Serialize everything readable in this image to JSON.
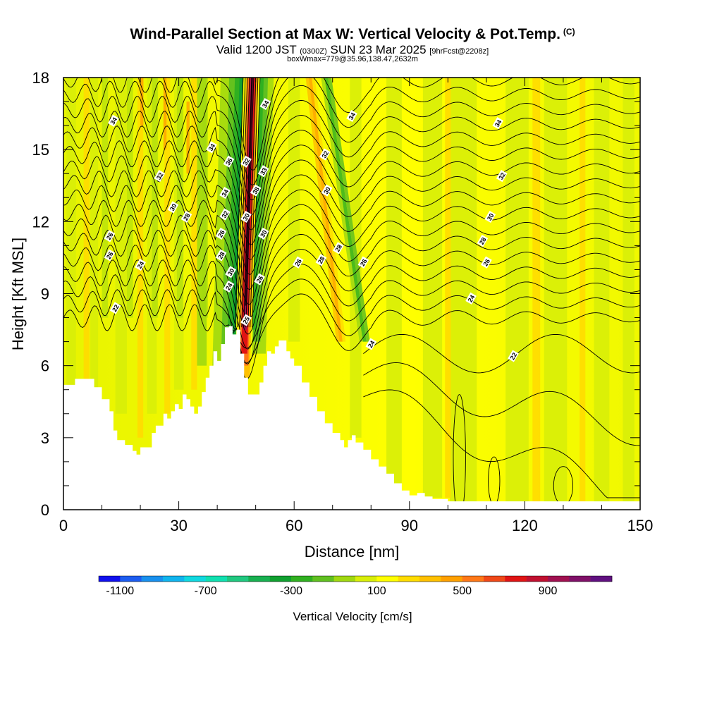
{
  "title": {
    "main": "Wind-Parallel Section at Max W: Vertical Velocity & Pot.Temp.",
    "mark": "(C)",
    "valid_prefix": "Valid 1200 JST",
    "valid_utc": "(0300Z)",
    "valid_date": "SUN 23 Mar 2025",
    "forecast": "[9hrFcst@2208z]",
    "box": "boxWmax=779@35.96,138.47,2632m"
  },
  "chart_data": {
    "type": "heatmap",
    "title": "Wind-Parallel Section at Max W: Vertical Velocity & Pot.Temp.",
    "xlabel": "Distance [nm]",
    "ylabel": "Height [Kft MSL]",
    "xlim": [
      0,
      150
    ],
    "ylim": [
      0,
      18
    ],
    "xticks": [
      0,
      30,
      60,
      90,
      120,
      150
    ],
    "yticks": [
      0,
      3,
      6,
      9,
      12,
      15,
      18
    ],
    "colorbar": {
      "title": "Vertical Velocity [cm/s]",
      "ticks": [
        -1100,
        -700,
        -300,
        100,
        500,
        900
      ],
      "colors": [
        "#1010ee",
        "#1c5cf0",
        "#1890ee",
        "#10b4ee",
        "#10d8e0",
        "#10e0b0",
        "#20c880",
        "#18b050",
        "#10a030",
        "#30b020",
        "#60c020",
        "#a0d810",
        "#d8ee08",
        "#ffff00",
        "#ffdc00",
        "#ffc000",
        "#ffa000",
        "#ff7818",
        "#f04818",
        "#e01414",
        "#c01030",
        "#a01050",
        "#801068",
        "#601080"
      ]
    },
    "terrain": [
      [
        0,
        5.2
      ],
      [
        3,
        5.45
      ],
      [
        7,
        5.45
      ],
      [
        8,
        5.1
      ],
      [
        10,
        4.6
      ],
      [
        12,
        4.1
      ],
      [
        13,
        3.3
      ],
      [
        14,
        2.9
      ],
      [
        16,
        2.7
      ],
      [
        18,
        2.45
      ],
      [
        19,
        2.3
      ],
      [
        20,
        2.6
      ],
      [
        22,
        2.6
      ],
      [
        23,
        3.2
      ],
      [
        24,
        3.5
      ],
      [
        26,
        4.0
      ],
      [
        27,
        3.8
      ],
      [
        28,
        4.1
      ],
      [
        29,
        4.4
      ],
      [
        30,
        4.2
      ],
      [
        31,
        4.8
      ],
      [
        32,
        4.6
      ],
      [
        33,
        4.3
      ],
      [
        34,
        4.0
      ],
      [
        35,
        4.3
      ],
      [
        36,
        4.9
      ],
      [
        37,
        5.5
      ],
      [
        38,
        6.0
      ],
      [
        39,
        6.6
      ],
      [
        40,
        6.2
      ],
      [
        41,
        6.9
      ],
      [
        42,
        7.6
      ],
      [
        43,
        7.65
      ],
      [
        44,
        7.3
      ],
      [
        45,
        7.5
      ],
      [
        46,
        6.5
      ],
      [
        47,
        5.5
      ],
      [
        48,
        4.8
      ],
      [
        49,
        4.8
      ],
      [
        50,
        4.8
      ],
      [
        51,
        5.3
      ],
      [
        52,
        6.0
      ],
      [
        53,
        6.6
      ],
      [
        54,
        6.5
      ],
      [
        55,
        6.8
      ],
      [
        56,
        7.05
      ],
      [
        57,
        7.05
      ],
      [
        58,
        6.6
      ],
      [
        59,
        6.3
      ],
      [
        60,
        6.0
      ],
      [
        62,
        5.3
      ],
      [
        64,
        4.7
      ],
      [
        66,
        4.1
      ],
      [
        68,
        3.6
      ],
      [
        70,
        3.2
      ],
      [
        72,
        2.9
      ],
      [
        73,
        2.6
      ],
      [
        74,
        2.9
      ],
      [
        75,
        3.1
      ],
      [
        76,
        2.8
      ],
      [
        78,
        2.5
      ],
      [
        80,
        2.1
      ],
      [
        82,
        1.8
      ],
      [
        84,
        1.5
      ],
      [
        86,
        1.1
      ],
      [
        88,
        0.8
      ],
      [
        90,
        0.6
      ],
      [
        92,
        0.7
      ],
      [
        94,
        0.55
      ],
      [
        96,
        0.45
      ],
      [
        98,
        0.45
      ],
      [
        100,
        0.35
      ],
      [
        120,
        0.35
      ],
      [
        150,
        0.35
      ]
    ],
    "updraft_core_x": 47.5,
    "contour_series": [
      {
        "name": "22",
        "base_y": 8.3
      },
      {
        "name": "24",
        "base_y": 10.2
      },
      {
        "name": "26",
        "base_y": 10.8
      },
      {
        "name": "28",
        "base_y": 11.6
      },
      {
        "name": "30",
        "base_y": 12.6
      },
      {
        "name": "32",
        "base_y": 14.0
      },
      {
        "name": "34",
        "base_y": 16.5
      }
    ],
    "contour_labels": [
      {
        "text": "34",
        "x": 13,
        "y": 16.2
      },
      {
        "text": "32",
        "x": 25,
        "y": 13.9
      },
      {
        "text": "30",
        "x": 28.5,
        "y": 12.6
      },
      {
        "text": "28",
        "x": 32,
        "y": 12.2
      },
      {
        "text": "26",
        "x": 12,
        "y": 11.4
      },
      {
        "text": "26",
        "x": 12,
        "y": 10.6
      },
      {
        "text": "24",
        "x": 20,
        "y": 10.2
      },
      {
        "text": "22",
        "x": 13.5,
        "y": 8.4
      },
      {
        "text": "34",
        "x": 38.5,
        "y": 15.1
      },
      {
        "text": "36",
        "x": 43,
        "y": 14.5
      },
      {
        "text": "32",
        "x": 47.5,
        "y": 14.5
      },
      {
        "text": "33",
        "x": 52,
        "y": 14.1
      },
      {
        "text": "34",
        "x": 42,
        "y": 13.2
      },
      {
        "text": "38",
        "x": 50,
        "y": 13.3
      },
      {
        "text": "32",
        "x": 42,
        "y": 12.3
      },
      {
        "text": "30",
        "x": 47.5,
        "y": 12.2
      },
      {
        "text": "26",
        "x": 41,
        "y": 11.5
      },
      {
        "text": "30",
        "x": 52,
        "y": 11.5
      },
      {
        "text": "28",
        "x": 41,
        "y": 10.6
      },
      {
        "text": "30",
        "x": 43.5,
        "y": 9.9
      },
      {
        "text": "24",
        "x": 43,
        "y": 9.3
      },
      {
        "text": "26",
        "x": 51,
        "y": 9.6
      },
      {
        "text": "25",
        "x": 47.5,
        "y": 7.9
      },
      {
        "text": "34",
        "x": 52.5,
        "y": 16.9
      },
      {
        "text": "34",
        "x": 75,
        "y": 16.4
      },
      {
        "text": "32",
        "x": 68,
        "y": 14.8
      },
      {
        "text": "30",
        "x": 68.5,
        "y": 13.3
      },
      {
        "text": "28",
        "x": 71.5,
        "y": 10.9
      },
      {
        "text": "28",
        "x": 67,
        "y": 10.4
      },
      {
        "text": "26",
        "x": 61,
        "y": 10.3
      },
      {
        "text": "26",
        "x": 78,
        "y": 10.3
      },
      {
        "text": "34",
        "x": 113,
        "y": 16.1
      },
      {
        "text": "32",
        "x": 114,
        "y": 13.9
      },
      {
        "text": "30",
        "x": 111,
        "y": 12.2
      },
      {
        "text": "28",
        "x": 109,
        "y": 11.2
      },
      {
        "text": "26",
        "x": 110,
        "y": 10.3
      },
      {
        "text": "24",
        "x": 106,
        "y": 8.8
      },
      {
        "text": "24",
        "x": 80,
        "y": 6.9
      },
      {
        "text": "22",
        "x": 117,
        "y": 6.4
      }
    ]
  }
}
